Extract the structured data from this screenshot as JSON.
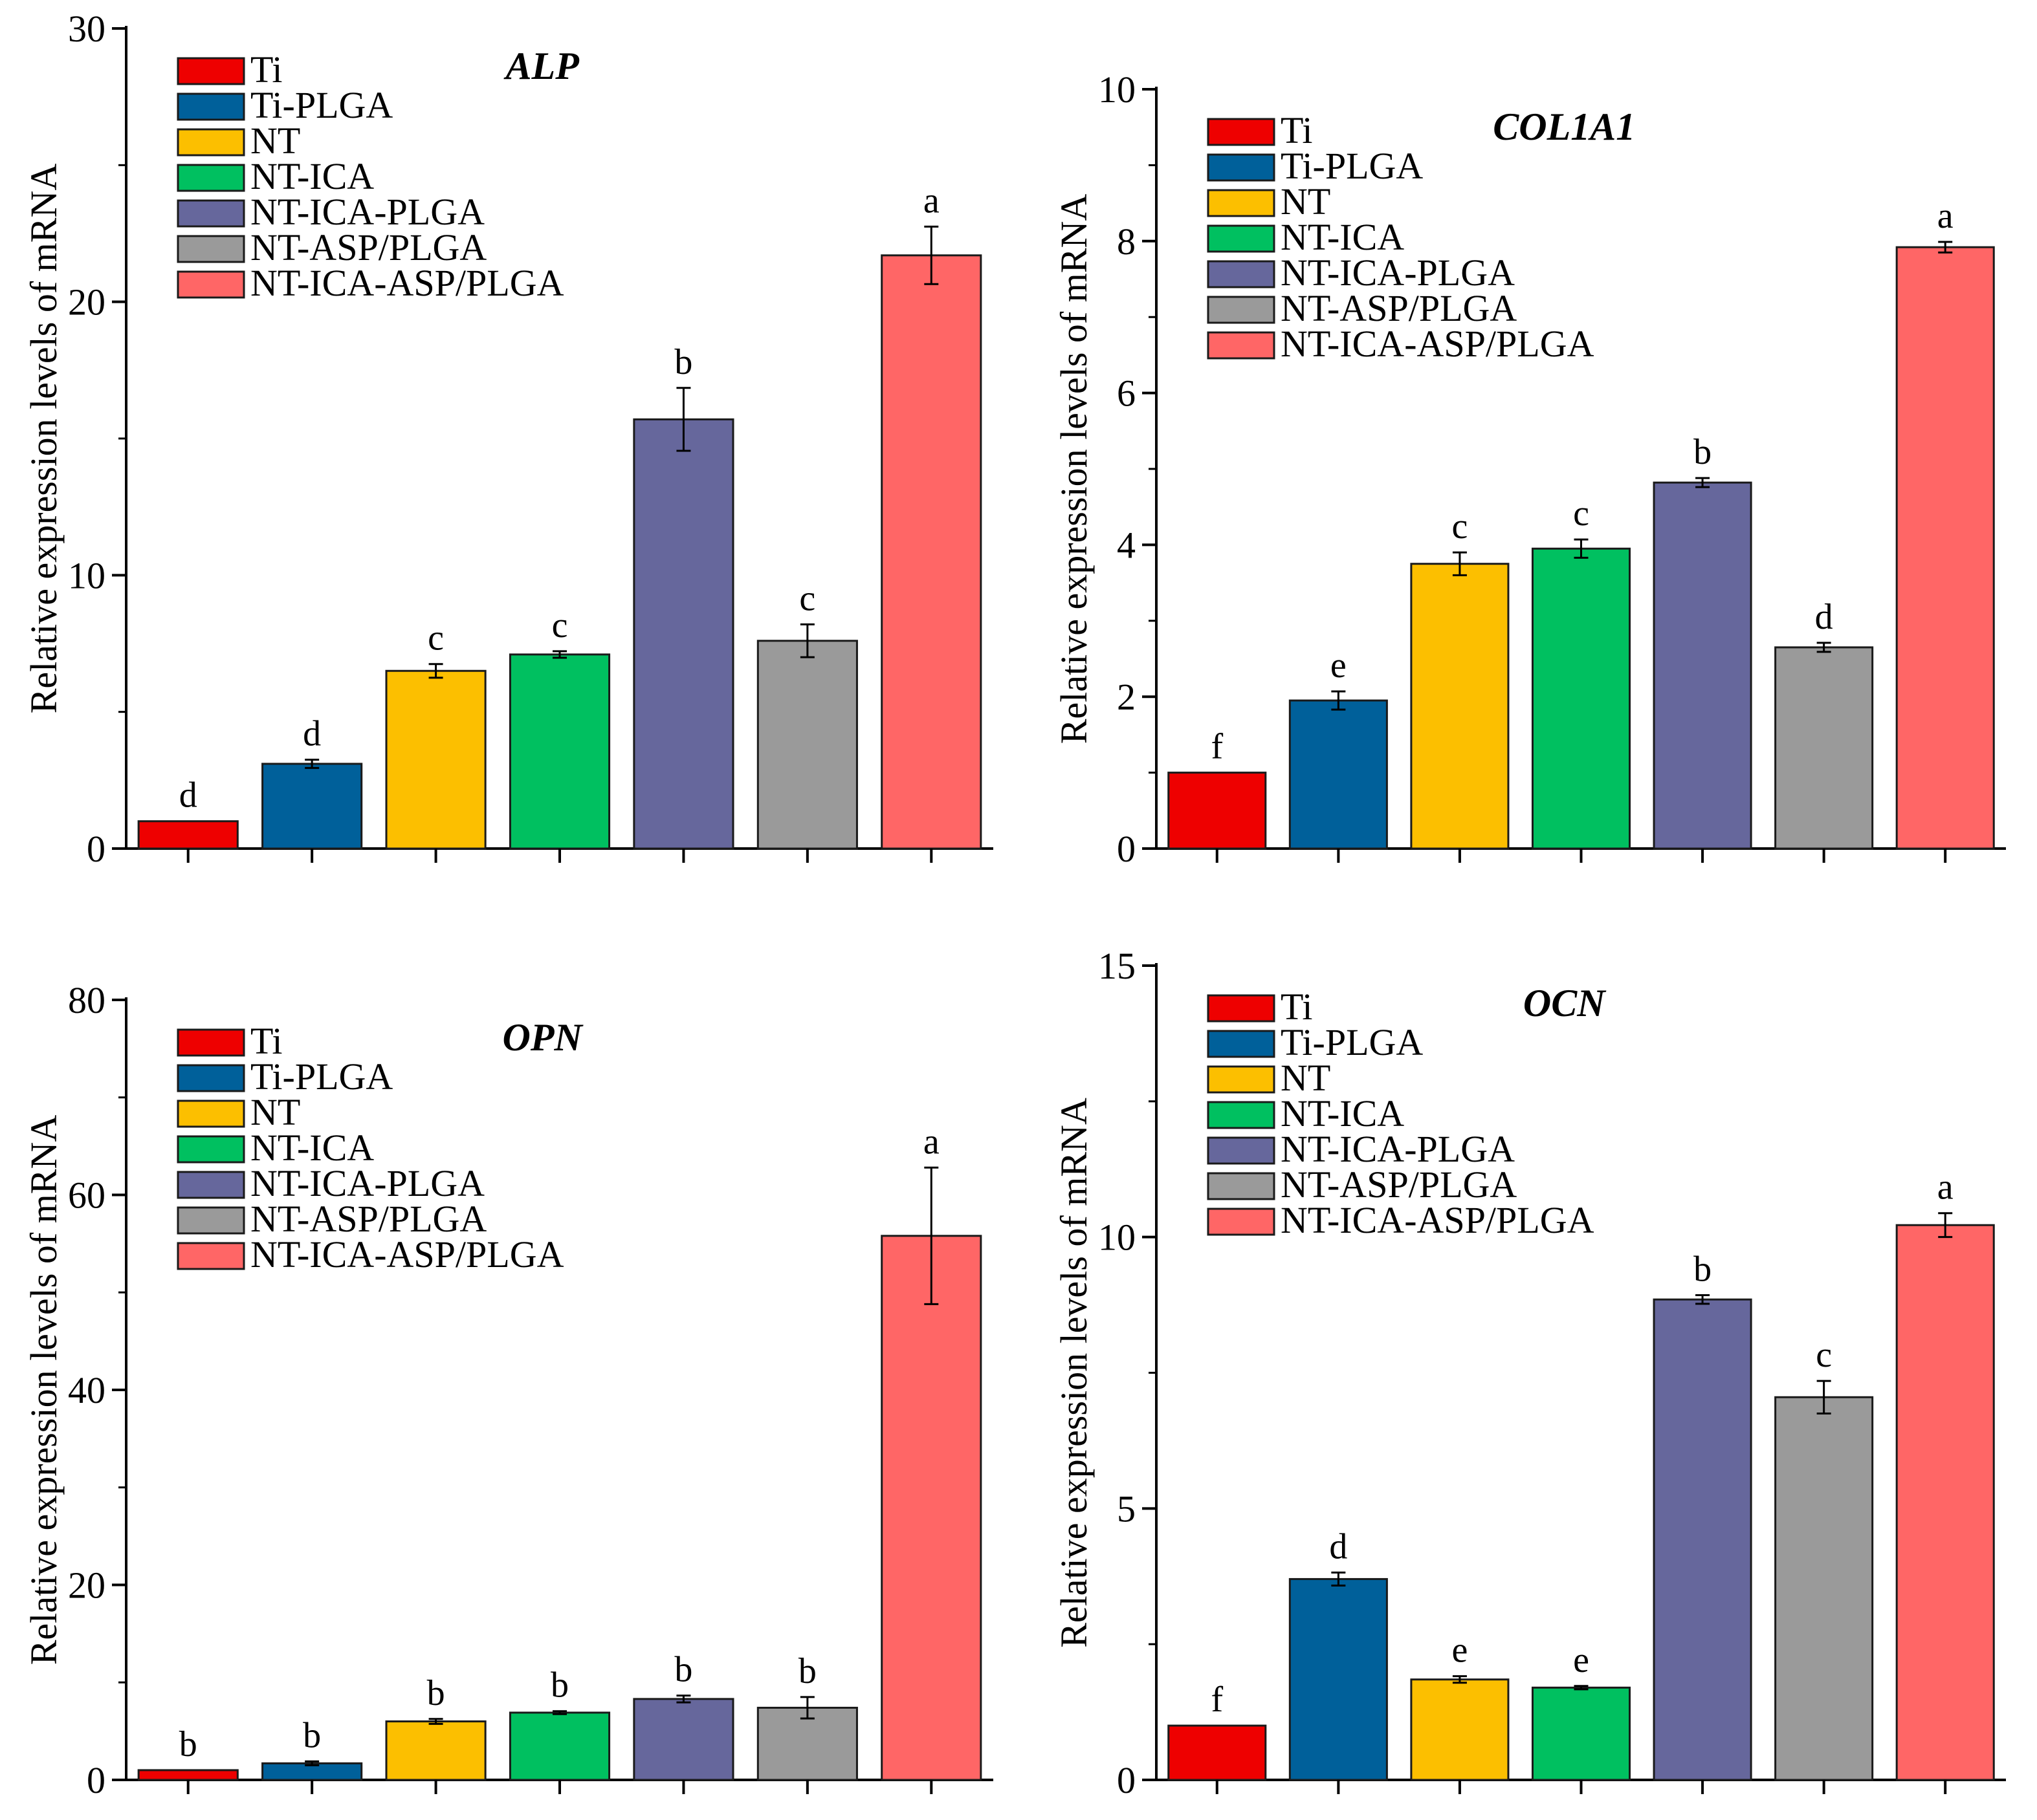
{
  "chart_data": [
    {
      "type": "bar",
      "title": "ALP",
      "ylabel": "Relative expression levels of mRNA",
      "xlabel": "",
      "ylim": [
        0,
        30
      ],
      "yticks": [
        0,
        10,
        20,
        30
      ],
      "categories": [
        "Ti",
        "Ti-PLGA",
        "NT",
        "NT-ICA",
        "NT-ICA-PLGA",
        "NT-ASP/PLGA",
        "NT-ICA-ASP/PLGA"
      ],
      "values": [
        1.0,
        3.1,
        6.5,
        7.1,
        15.7,
        7.6,
        21.7
      ],
      "errors": [
        0.0,
        0.15,
        0.25,
        0.12,
        1.15,
        0.6,
        1.05
      ],
      "significance": [
        "d",
        "d",
        "c",
        "c",
        "b",
        "c",
        "a"
      ],
      "legend": "top-left"
    },
    {
      "type": "bar",
      "title": "COL1A1",
      "ylabel": "Relative expression levels of mRNA",
      "xlabel": "",
      "ylim": [
        0,
        10
      ],
      "yticks": [
        0,
        2,
        4,
        6,
        8,
        10
      ],
      "categories": [
        "Ti",
        "Ti-PLGA",
        "NT",
        "NT-ICA",
        "NT-ICA-PLGA",
        "NT-ASP/PLGA",
        "NT-ICA-ASP/PLGA"
      ],
      "values": [
        1.0,
        1.95,
        3.75,
        3.95,
        4.82,
        2.65,
        7.92
      ],
      "errors": [
        0.0,
        0.12,
        0.15,
        0.12,
        0.06,
        0.06,
        0.07
      ],
      "significance": [
        "f",
        "e",
        "c",
        "c",
        "b",
        "d",
        "a"
      ],
      "legend": "top-left"
    },
    {
      "type": "bar",
      "title": "OPN",
      "ylabel": "Relative expression levels of mRNA",
      "xlabel": "",
      "ylim": [
        0,
        80
      ],
      "yticks": [
        0,
        20,
        40,
        60,
        80
      ],
      "categories": [
        "Ti",
        "Ti-PLGA",
        "NT",
        "NT-ICA",
        "NT-ICA-PLGA",
        "NT-ASP/PLGA",
        "NT-ICA-ASP/PLGA"
      ],
      "values": [
        1.0,
        1.7,
        6.0,
        6.9,
        8.3,
        7.4,
        55.8
      ],
      "errors": [
        0.0,
        0.2,
        0.25,
        0.15,
        0.35,
        1.1,
        7.0
      ],
      "significance": [
        "b",
        "b",
        "b",
        "b",
        "b",
        "b",
        "a"
      ],
      "legend": "top-left"
    },
    {
      "type": "bar",
      "title": "OCN",
      "ylabel": "Relative expression levels of mRNA",
      "xlabel": "",
      "ylim": [
        0,
        15
      ],
      "yticks": [
        0,
        5,
        10,
        15
      ],
      "categories": [
        "Ti",
        "Ti-PLGA",
        "NT",
        "NT-ICA",
        "NT-ICA-PLGA",
        "NT-ASP/PLGA",
        "NT-ICA-ASP/PLGA"
      ],
      "values": [
        1.0,
        3.7,
        1.85,
        1.7,
        8.85,
        7.05,
        10.22
      ],
      "errors": [
        0.0,
        0.12,
        0.06,
        0.03,
        0.08,
        0.3,
        0.22
      ],
      "significance": [
        "f",
        "d",
        "e",
        "e",
        "b",
        "c",
        "a"
      ],
      "legend": "top-left"
    }
  ],
  "series_colors": [
    "#ee0000",
    "#00609a",
    "#fcbf00",
    "#00c060",
    "#66679c",
    "#9a9a9a",
    "#ff6666"
  ]
}
